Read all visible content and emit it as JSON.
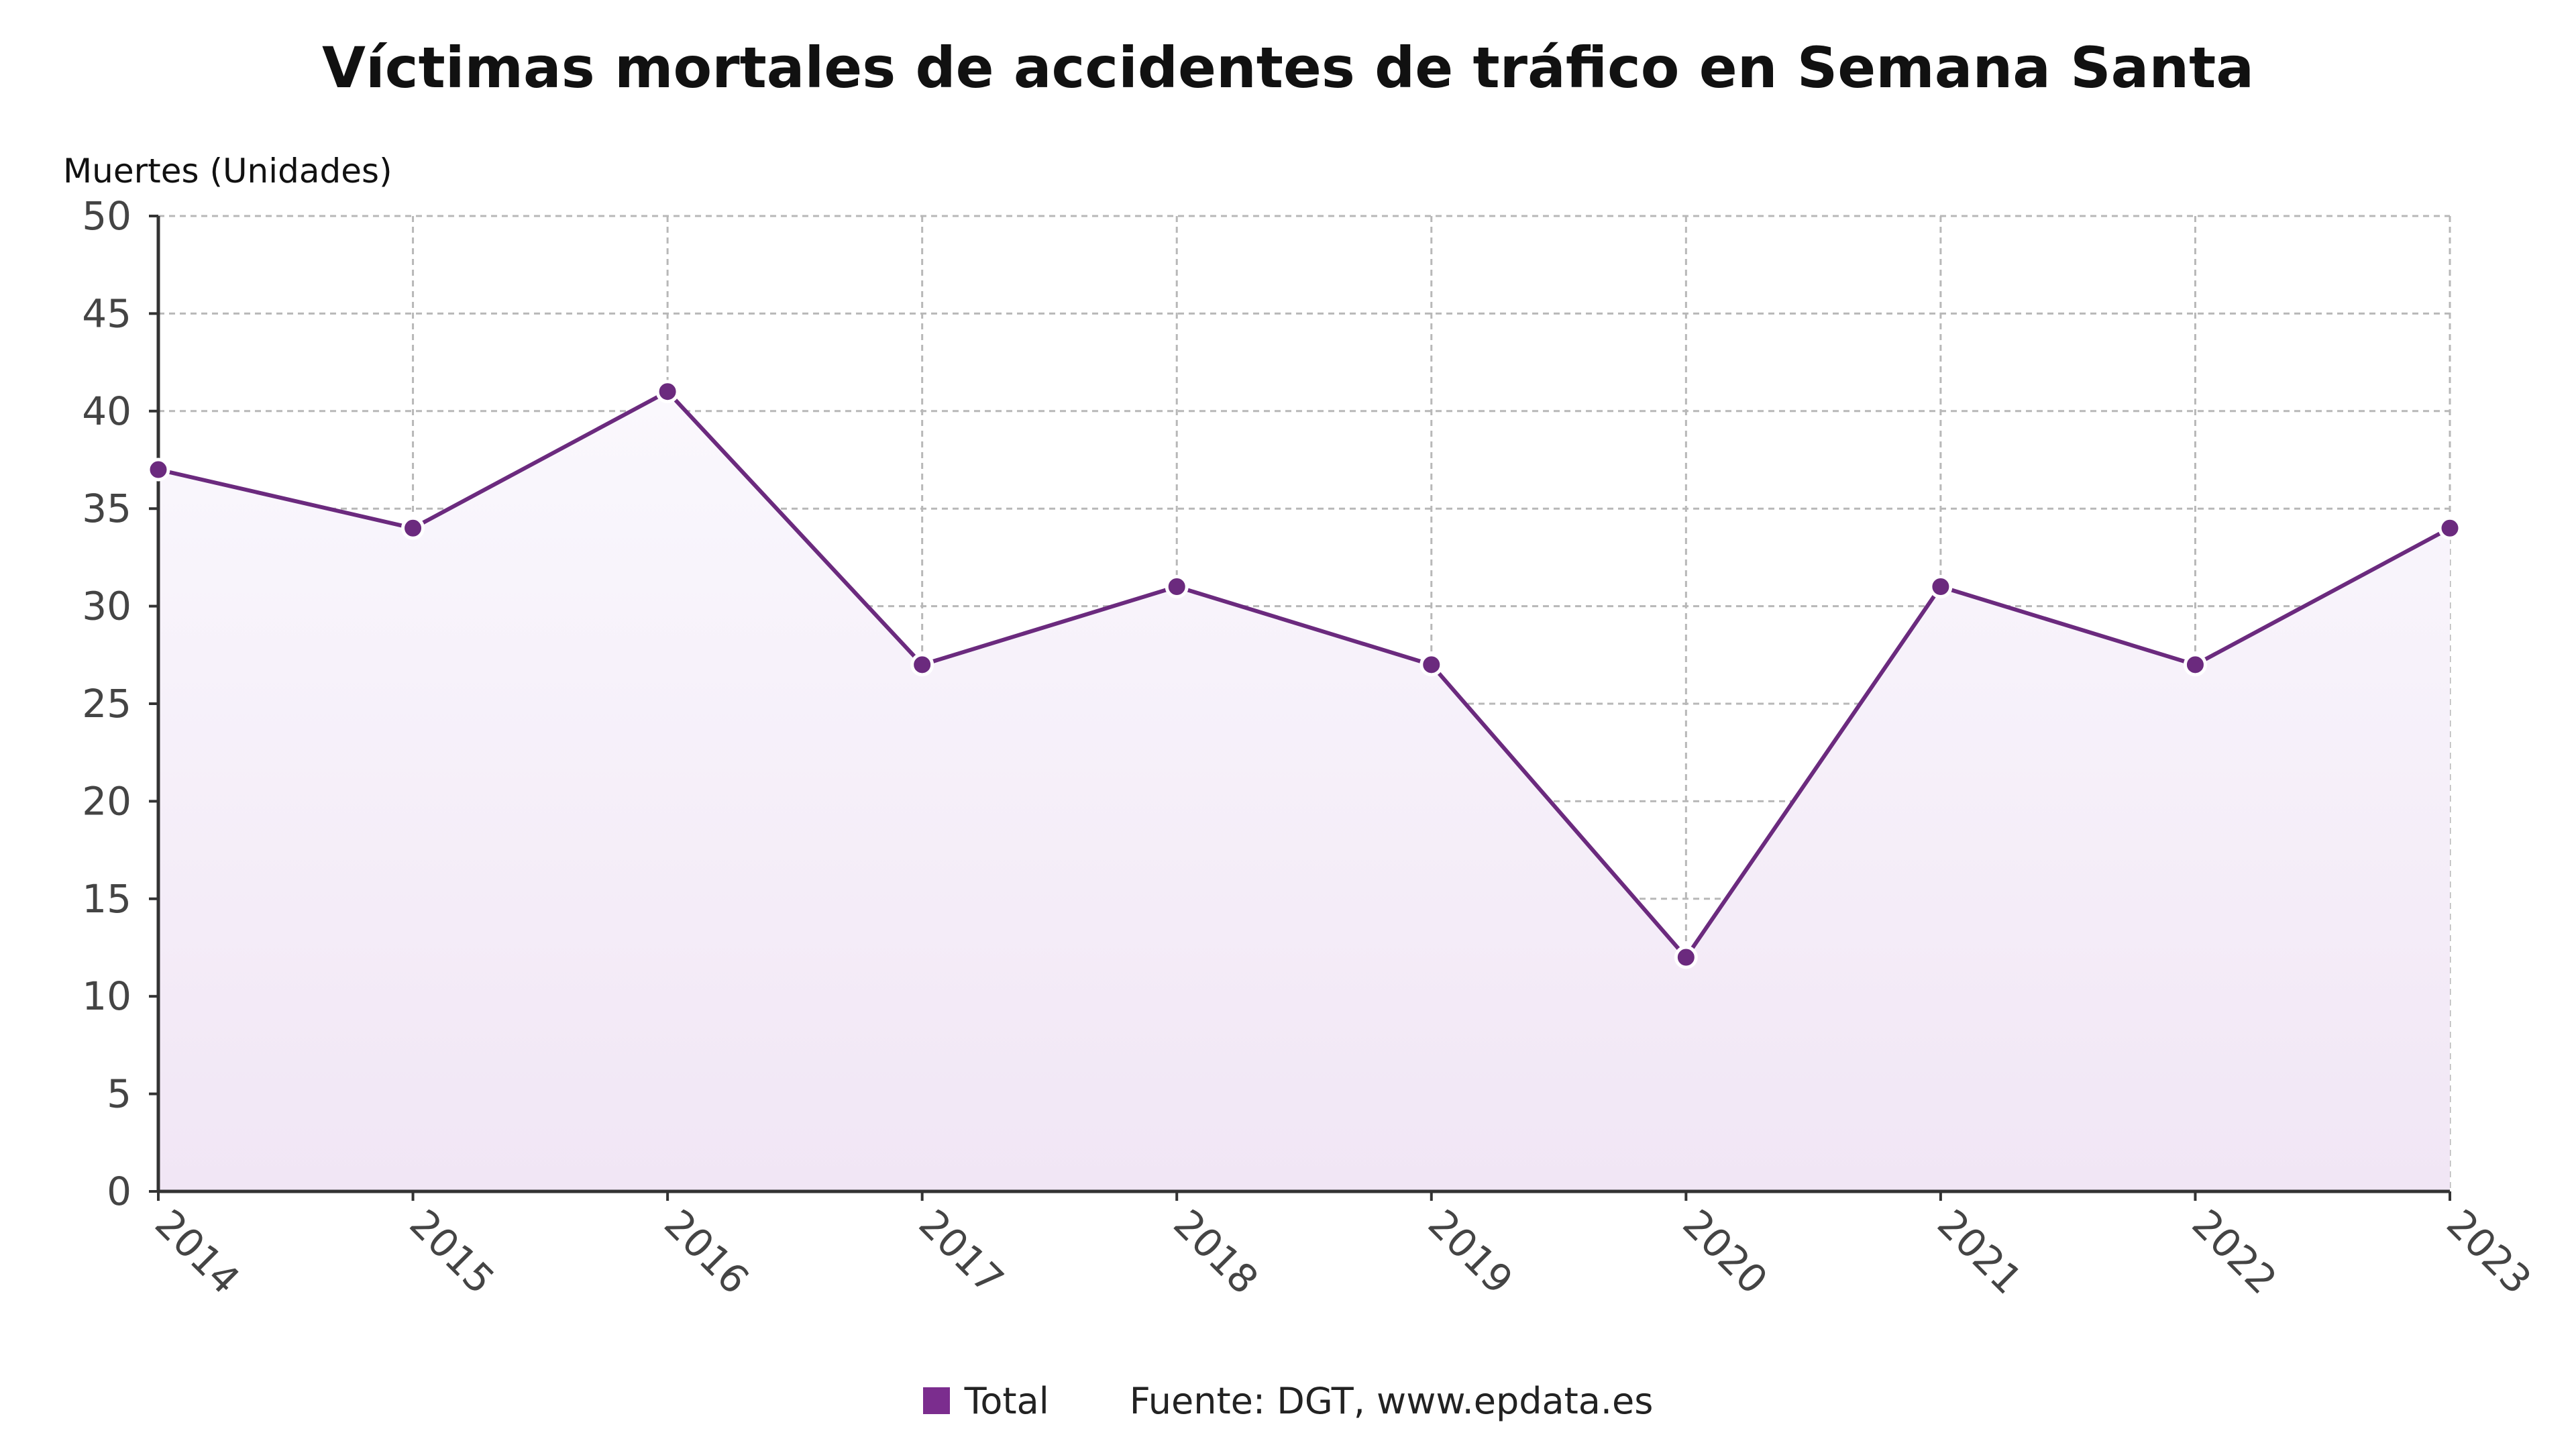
{
  "chart_data": {
    "type": "area",
    "title": "Víctimas mortales de accidentes de tráfico en Semana Santa",
    "ylabel": "Muertes (Unidades)",
    "xlabel": "",
    "categories": [
      "2014",
      "2015",
      "2016",
      "2017",
      "2018",
      "2019",
      "2020",
      "2021",
      "2022",
      "2023"
    ],
    "series": [
      {
        "name": "Total",
        "values": [
          37,
          34,
          41,
          27,
          31,
          27,
          12,
          31,
          27,
          34
        ]
      }
    ],
    "ylim": [
      0,
      50
    ],
    "yticks": [
      0,
      5,
      10,
      15,
      20,
      25,
      30,
      35,
      40,
      45,
      50
    ],
    "grid": true,
    "legend_position": "bottom-center"
  },
  "footer": {
    "legend_label": "Total",
    "source": "Fuente: DGT, www.epdata.es"
  },
  "colors": {
    "series": "#6b2a7e",
    "marker": "#6b2a7e",
    "legend": "#7b2d8e",
    "grid": "#b8b8b8",
    "axis": "#333333",
    "fill_top": "#faf8fd",
    "fill_bottom": "#f1e6f5"
  }
}
